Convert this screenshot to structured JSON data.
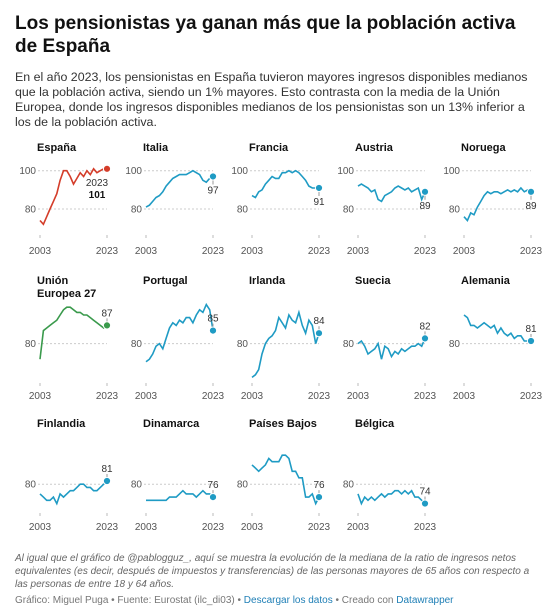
{
  "title": "Los pensionistas ya ganan más que la población activa de España",
  "subtitle": "En el año 2023, los pensionistas en España tuvieron mayores ingresos disponibles medianos que la población activa, siendo un 1% mayores. Esto contrasta con la media de la Unión Europea, donde los ingresos disponibles medianos de los pensionistas son un 13% inferior a los de la población activa.",
  "notes": "Al igual que el gráfico de @pablogguz_, aquí se muestra la evolución de la mediana de la ratio de ingresos netos equivalentes (es decir, después de impuestos y transferencias) de las personas mayores de 65 años con respecto a las personas de entre 18 y 64 años.",
  "source": "Gráfico: Miguel Puga • Fuente: Eurostat (ilc_di03) •",
  "download": "Descargar los datos",
  "created": "• Creado con",
  "tool": "Datawrapper",
  "chart_data": [
    {
      "type": "line",
      "title": "España",
      "color": "#d43d2a",
      "annotations": [
        "2023"
      ],
      "x": [
        2003,
        2004,
        2005,
        2006,
        2007,
        2008,
        2009,
        2010,
        2011,
        2012,
        2013,
        2014,
        2015,
        2016,
        2017,
        2018,
        2019,
        2020,
        2021,
        2022,
        2023
      ],
      "values": [
        74,
        72,
        76,
        80,
        84,
        88,
        95,
        100,
        100,
        97,
        93,
        96,
        99,
        97,
        100,
        98,
        101,
        99,
        100,
        101,
        101
      ],
      "xlim": [
        2003,
        2023
      ],
      "xticks": [
        2003,
        2023
      ],
      "ylim": [
        68,
        103
      ],
      "yticks": [
        80,
        100
      ]
    },
    {
      "type": "line",
      "title": "Italia",
      "color": "#1f9bc4",
      "x": [
        2003,
        2004,
        2005,
        2006,
        2007,
        2008,
        2009,
        2010,
        2011,
        2012,
        2013,
        2014,
        2015,
        2016,
        2017,
        2018,
        2019,
        2020,
        2021,
        2022,
        2023
      ],
      "values": [
        81,
        82,
        84,
        86,
        87,
        89,
        92,
        94,
        96,
        97,
        98,
        98,
        98,
        99,
        100,
        99,
        98,
        95,
        94,
        96,
        97
      ],
      "xlim": [
        2003,
        2023
      ],
      "xticks": [
        2003,
        2023
      ],
      "ylim": [
        68,
        103
      ],
      "yticks": [
        80,
        100
      ]
    },
    {
      "type": "line",
      "title": "Francia",
      "color": "#1f9bc4",
      "x": [
        2003,
        2004,
        2005,
        2006,
        2007,
        2008,
        2009,
        2010,
        2011,
        2012,
        2013,
        2014,
        2015,
        2016,
        2017,
        2018,
        2019,
        2020,
        2021,
        2022,
        2023
      ],
      "values": [
        87,
        86,
        89,
        90,
        93,
        95,
        97,
        96,
        96,
        99,
        99,
        100,
        99,
        100,
        99,
        97,
        95,
        92,
        91,
        91,
        91
      ],
      "xlim": [
        2003,
        2023
      ],
      "xticks": [
        2003,
        2023
      ],
      "ylim": [
        68,
        103
      ],
      "yticks": [
        80,
        100
      ]
    },
    {
      "type": "line",
      "title": "Austria",
      "color": "#1f9bc4",
      "x": [
        2003,
        2004,
        2005,
        2006,
        2007,
        2008,
        2009,
        2010,
        2011,
        2012,
        2013,
        2014,
        2015,
        2016,
        2017,
        2018,
        2019,
        2020,
        2021,
        2022,
        2023
      ],
      "values": [
        92,
        93,
        92,
        91,
        89,
        90,
        85,
        84,
        87,
        88,
        89,
        91,
        92,
        91,
        90,
        91,
        89,
        90,
        91,
        85,
        89
      ],
      "xlim": [
        2003,
        2023
      ],
      "xticks": [
        2003,
        2023
      ],
      "ylim": [
        68,
        103
      ],
      "yticks": [
        80,
        100
      ]
    },
    {
      "type": "line",
      "title": "Noruega",
      "color": "#1f9bc4",
      "x": [
        2003,
        2004,
        2005,
        2006,
        2007,
        2008,
        2009,
        2010,
        2011,
        2012,
        2013,
        2014,
        2015,
        2016,
        2017,
        2018,
        2019,
        2020,
        2021,
        2022,
        2023
      ],
      "values": [
        76,
        74,
        78,
        77,
        81,
        84,
        87,
        89,
        88,
        89,
        89,
        88,
        89,
        90,
        89,
        90,
        89,
        91,
        89,
        90,
        89
      ],
      "xlim": [
        2003,
        2023
      ],
      "xticks": [
        2003,
        2023
      ],
      "ylim": [
        68,
        103
      ],
      "yticks": [
        80,
        100
      ]
    },
    {
      "type": "line",
      "title": "Unión Europea 27",
      "color": "#3a9a4c",
      "x": [
        2003,
        2004,
        2005,
        2006,
        2007,
        2008,
        2009,
        2010,
        2011,
        2012,
        2013,
        2014,
        2015,
        2016,
        2017,
        2018,
        2019,
        2020,
        2021,
        2022,
        2023
      ],
      "values": [
        74,
        85,
        86,
        87,
        88,
        89,
        91,
        93,
        94,
        94,
        93,
        92,
        92,
        91,
        91,
        90,
        89,
        88,
        87,
        86,
        87
      ],
      "xlim": [
        2003,
        2023
      ],
      "xticks": [
        2003,
        2023
      ],
      "ylim": [
        66,
        96
      ],
      "yticks": [
        80
      ]
    },
    {
      "type": "line",
      "title": "Portugal",
      "color": "#1f9bc4",
      "x": [
        2003,
        2004,
        2005,
        2006,
        2007,
        2008,
        2009,
        2010,
        2011,
        2012,
        2013,
        2014,
        2015,
        2016,
        2017,
        2018,
        2019,
        2020,
        2021,
        2022,
        2023
      ],
      "values": [
        73,
        74,
        76,
        79,
        80,
        78,
        82,
        86,
        88,
        87,
        89,
        88,
        90,
        90,
        88,
        91,
        93,
        92,
        95,
        93,
        85
      ],
      "xlim": [
        2003,
        2023
      ],
      "xticks": [
        2003,
        2023
      ],
      "ylim": [
        66,
        96
      ],
      "yticks": [
        80
      ]
    },
    {
      "type": "line",
      "title": "Irlanda",
      "color": "#1f9bc4",
      "x": [
        2003,
        2004,
        2005,
        2006,
        2007,
        2008,
        2009,
        2010,
        2011,
        2012,
        2013,
        2014,
        2015,
        2016,
        2017,
        2018,
        2019,
        2020,
        2021,
        2022,
        2023
      ],
      "values": [
        67,
        68,
        70,
        76,
        80,
        82,
        83,
        85,
        90,
        88,
        86,
        91,
        89,
        88,
        92,
        87,
        84,
        89,
        87,
        80,
        84
      ],
      "xlim": [
        2003,
        2023
      ],
      "xticks": [
        2003,
        2023
      ],
      "ylim": [
        66,
        96
      ],
      "yticks": [
        80
      ]
    },
    {
      "type": "line",
      "title": "Suecia",
      "color": "#1f9bc4",
      "x": [
        2003,
        2004,
        2005,
        2006,
        2007,
        2008,
        2009,
        2010,
        2011,
        2012,
        2013,
        2014,
        2015,
        2016,
        2017,
        2018,
        2019,
        2020,
        2021,
        2022,
        2023
      ],
      "values": [
        80,
        81,
        79,
        76,
        77,
        78,
        80,
        74,
        79,
        78,
        75,
        77,
        76,
        78,
        77,
        78,
        79,
        79,
        80,
        79,
        82
      ],
      "xlim": [
        2003,
        2023
      ],
      "xticks": [
        2003,
        2023
      ],
      "ylim": [
        66,
        96
      ],
      "yticks": [
        80
      ]
    },
    {
      "type": "line",
      "title": "Alemania",
      "color": "#1f9bc4",
      "x": [
        2003,
        2004,
        2005,
        2006,
        2007,
        2008,
        2009,
        2010,
        2011,
        2012,
        2013,
        2014,
        2015,
        2016,
        2017,
        2018,
        2019,
        2020,
        2021,
        2022,
        2023
      ],
      "values": [
        91,
        90,
        87,
        87,
        86,
        87,
        88,
        87,
        86,
        87,
        84,
        86,
        84,
        83,
        84,
        82,
        83,
        83,
        81,
        81,
        81
      ],
      "xlim": [
        2003,
        2023
      ],
      "xticks": [
        2003,
        2023
      ],
      "ylim": [
        66,
        96
      ],
      "yticks": [
        80
      ]
    },
    {
      "type": "line",
      "title": "Finlandia",
      "color": "#1f9bc4",
      "x": [
        2003,
        2004,
        2005,
        2006,
        2007,
        2008,
        2009,
        2010,
        2011,
        2012,
        2013,
        2014,
        2015,
        2016,
        2017,
        2018,
        2019,
        2020,
        2021,
        2022,
        2023
      ],
      "values": [
        77,
        76,
        75,
        75,
        76,
        74,
        77,
        76,
        77,
        78,
        78,
        79,
        80,
        80,
        79,
        79,
        78,
        78,
        79,
        80,
        81
      ],
      "xlim": [
        2003,
        2023
      ],
      "xticks": [
        2003,
        2023
      ],
      "ylim": [
        72,
        90
      ],
      "yticks": [
        80
      ]
    },
    {
      "type": "line",
      "title": "Dinamarca",
      "color": "#1f9bc4",
      "x": [
        2003,
        2004,
        2005,
        2006,
        2007,
        2008,
        2009,
        2010,
        2011,
        2012,
        2013,
        2014,
        2015,
        2016,
        2017,
        2018,
        2019,
        2020,
        2021,
        2022,
        2023
      ],
      "values": [
        75,
        75,
        75,
        75,
        75,
        75,
        75,
        76,
        76,
        76,
        77,
        78,
        77,
        77,
        77,
        76,
        77,
        78,
        77,
        77,
        76
      ],
      "xlim": [
        2003,
        2023
      ],
      "xticks": [
        2003,
        2023
      ],
      "ylim": [
        72,
        90
      ],
      "yticks": [
        80
      ]
    },
    {
      "type": "line",
      "title": "Países Bajos",
      "color": "#1f9bc4",
      "x": [
        2003,
        2004,
        2005,
        2006,
        2007,
        2008,
        2009,
        2010,
        2011,
        2012,
        2013,
        2014,
        2015,
        2016,
        2017,
        2018,
        2019,
        2020,
        2021,
        2022,
        2023
      ],
      "values": [
        86,
        85,
        84,
        85,
        86,
        88,
        87,
        87,
        87,
        89,
        89,
        88,
        84,
        84,
        82,
        82,
        76,
        76,
        77,
        74,
        76
      ],
      "xlim": [
        2003,
        2023
      ],
      "xticks": [
        2003,
        2023
      ],
      "ylim": [
        72,
        90
      ],
      "yticks": [
        80
      ]
    },
    {
      "type": "line",
      "title": "Bélgica",
      "color": "#1f9bc4",
      "x": [
        2003,
        2004,
        2005,
        2006,
        2007,
        2008,
        2009,
        2010,
        2011,
        2012,
        2013,
        2014,
        2015,
        2016,
        2017,
        2018,
        2019,
        2020,
        2021,
        2022,
        2023
      ],
      "values": [
        77,
        74,
        76,
        75,
        76,
        75,
        76,
        77,
        76,
        77,
        77,
        78,
        78,
        77,
        78,
        77,
        78,
        76,
        76,
        75,
        74
      ],
      "xlim": [
        2003,
        2023
      ],
      "xticks": [
        2003,
        2023
      ],
      "ylim": [
        72,
        90
      ],
      "yticks": [
        80
      ]
    }
  ]
}
